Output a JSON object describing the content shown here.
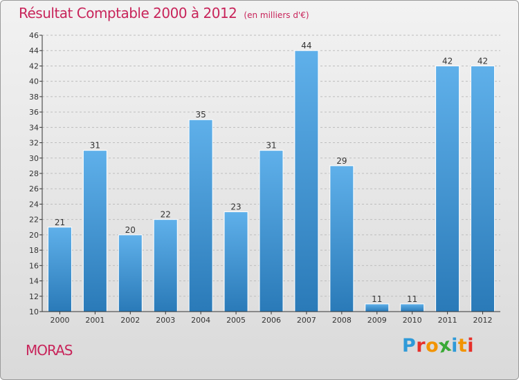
{
  "header": {
    "title": "Résultat Comptable 2000 à 2012",
    "unit": "(en milliers d'€)"
  },
  "footer": {
    "city": "MORAS",
    "brand": {
      "text": "Proxiti",
      "letters": [
        {
          "ch": "P",
          "color": "#2f9ad8"
        },
        {
          "ch": "r",
          "color": "#e7302a"
        },
        {
          "ch": "o",
          "color": "#f29400"
        },
        {
          "ch": "x",
          "color": "#39a935"
        },
        {
          "ch": "i",
          "color": "#2f9ad8"
        },
        {
          "ch": "t",
          "color": "#f29400"
        },
        {
          "ch": "i",
          "color": "#e7302a"
        }
      ]
    }
  },
  "colors": {
    "title": "#c8245a",
    "bar_top": "#5fb0ea",
    "bar_bottom": "#2a7ab8",
    "grid": "#bdbdbd",
    "axis": "#333333"
  },
  "chart_data": {
    "type": "bar",
    "title": "Résultat Comptable 2000 à 2012",
    "subtitle": "(en milliers d'€)",
    "xlabel": "",
    "ylabel": "",
    "categories": [
      "2000",
      "2001",
      "2002",
      "2003",
      "2004",
      "2005",
      "2006",
      "2007",
      "2008",
      "2009",
      "2010",
      "2011",
      "2012"
    ],
    "values": [
      21,
      31,
      20,
      22,
      35,
      23,
      31,
      44,
      29,
      11,
      11,
      42,
      42
    ],
    "ylim": [
      10,
      46
    ],
    "yticks": [
      10,
      12,
      14,
      16,
      18,
      20,
      22,
      24,
      26,
      28,
      30,
      32,
      34,
      36,
      38,
      40,
      42,
      44,
      46
    ],
    "grid": true,
    "data_labels": true
  }
}
